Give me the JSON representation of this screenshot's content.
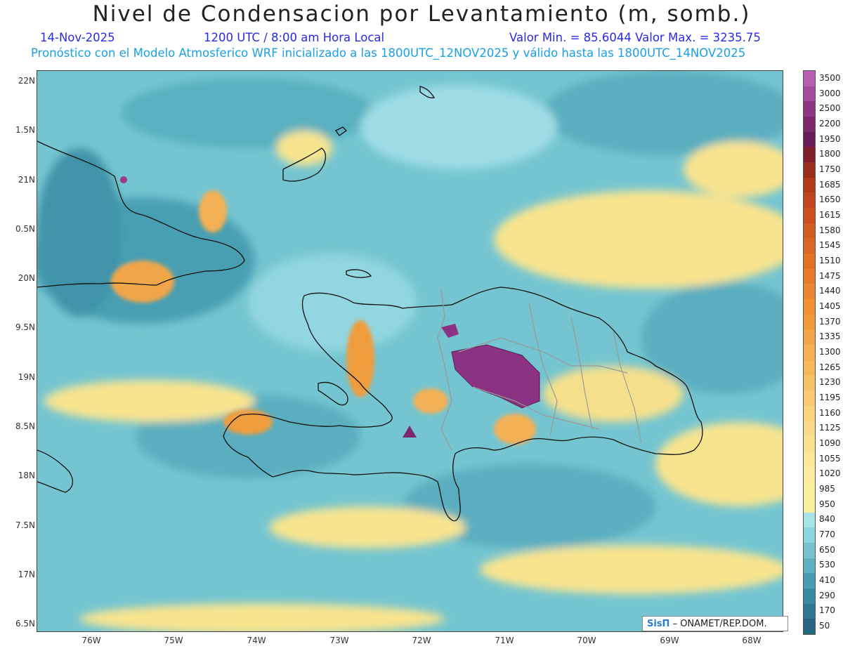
{
  "header": {
    "title": "Nivel de Condensacion por Levantamiento (m, somb.)",
    "date": "14-Nov-2025",
    "time": "1200 UTC / 8:00 am Hora Local",
    "minmax": "Valor Min. = 85.6044   Valor Max. = 3235.75",
    "forecast": "Pronóstico con el Modelo Atmosferico WRF inicializado a las 1800UTC_12NOV2025 y válido hasta las   1800UTC_14NOV2025"
  },
  "axes": {
    "y_labels": [
      "22N",
      "1.5N",
      "21N",
      "0.5N",
      "20N",
      "9.5N",
      "19N",
      "8.5N",
      "18N",
      "7.5N",
      "17N",
      "6.5N"
    ],
    "x_labels": [
      "76W",
      "75W",
      "74W",
      "73W",
      "72W",
      "71W",
      "70W",
      "69W",
      "68W"
    ]
  },
  "legend": {
    "labels": [
      "3500",
      "3000",
      "2500",
      "2200",
      "1950",
      "1800",
      "1750",
      "1685",
      "1650",
      "1615",
      "1580",
      "1545",
      "1510",
      "1475",
      "1440",
      "1405",
      "1370",
      "1335",
      "1300",
      "1265",
      "1230",
      "1195",
      "1160",
      "1125",
      "1090",
      "1055",
      "1020",
      "985",
      "950",
      "840",
      "770",
      "650",
      "530",
      "410",
      "290",
      "170",
      "50"
    ],
    "colors": [
      "#b65fb3",
      "#a44a9f",
      "#8e3682",
      "#7a2a6c",
      "#661c55",
      "#7e1f2a",
      "#9a2e1c",
      "#b23a1c",
      "#c2451d",
      "#cc501f",
      "#d45b22",
      "#dc6625",
      "#e27128",
      "#e87b2b",
      "#ec8530",
      "#ef8f36",
      "#f19a3d",
      "#f3a446",
      "#f5ae50",
      "#f6b85b",
      "#f7c167",
      "#f8ca72",
      "#f9d27d",
      "#fada87",
      "#fbe190",
      "#fbe698",
      "#fcea9e",
      "#fcee9f",
      "#fbf0a0",
      "#a9e3e8",
      "#8fd3dc",
      "#76c2cf",
      "#5eafc1",
      "#4a9cb2",
      "#3a89a2",
      "#2f7792",
      "#266480"
    ]
  },
  "credit": {
    "logo": "SisΠ",
    "text": " – ONAMET/REP.DOM."
  },
  "map": {
    "region": "Hispaniola / Caribe",
    "background_color": "#6ec6d2"
  }
}
